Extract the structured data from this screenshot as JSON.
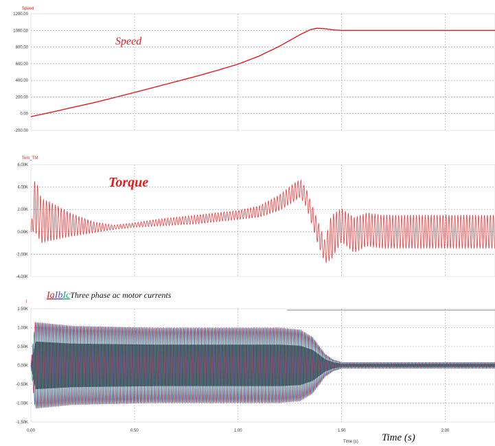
{
  "figure": {
    "time_label": "Time (s)",
    "time_caption": "Time (s)"
  },
  "chart_data": [
    {
      "type": "line",
      "title": "Speed",
      "annotation": "Speed",
      "xlabel": "Time (s)",
      "ylabel": "",
      "xlim": [
        0.0,
        2.24
      ],
      "ylim": [
        -200,
        1200
      ],
      "yticks": [
        "1200.00",
        "1000.00",
        "800.00",
        "600.00",
        "400.00",
        "200.00",
        "0.00",
        "-200.00"
      ],
      "ytick_values": [
        1200,
        1000,
        800,
        600,
        400,
        200,
        0,
        -200
      ],
      "grid": true,
      "series": [
        {
          "color": "#e8191c",
          "x": [
            0.0,
            0.1,
            0.2,
            0.3,
            0.4,
            0.5,
            0.6,
            0.7,
            0.8,
            0.9,
            1.0,
            1.1,
            1.2,
            1.25,
            1.3,
            1.35,
            1.38,
            1.42,
            1.46,
            1.5,
            1.6,
            1.8,
            2.0,
            2.24
          ],
          "y": [
            -35,
            18,
            75,
            130,
            192,
            255,
            320,
            385,
            450,
            520,
            595,
            690,
            810,
            880,
            950,
            1010,
            1025,
            1020,
            1005,
            1000,
            1000,
            1000,
            1000,
            1000
          ]
        }
      ]
    },
    {
      "type": "line",
      "title": "Tem_TM",
      "annotation": "Torque",
      "xlabel": "Time (s)",
      "ylabel": "",
      "xlim": [
        0.0,
        2.24
      ],
      "ylim": [
        -4000,
        6000
      ],
      "yticks": [
        "6.00K",
        "4.00K",
        "2.00K",
        "0.00K",
        "-2.00K",
        "-4.00K"
      ],
      "ytick_values": [
        6000,
        4000,
        2000,
        0,
        -2000,
        -4000
      ],
      "grid": true,
      "series": [
        {
          "color": "#e8191c",
          "x": [
            0.0,
            0.02,
            0.05,
            0.1,
            0.2,
            0.3,
            0.4,
            0.5,
            0.6,
            0.8,
            1.0,
            1.1,
            1.2,
            1.26,
            1.3,
            1.33,
            1.38,
            1.42,
            1.45,
            1.5,
            1.56,
            1.62,
            1.7,
            1.8,
            2.0,
            2.24
          ],
          "y": [
            0,
            2500,
            1000,
            900,
            600,
            400,
            400,
            600,
            800,
            1100,
            1500,
            1800,
            2600,
            3400,
            3900,
            3000,
            200,
            -1800,
            -500,
            600,
            -300,
            200,
            0,
            0,
            0,
            0
          ],
          "ripple": [
            0,
            2500,
            2000,
            1700,
            1000,
            500,
            200,
            200,
            300,
            400,
            400,
            500,
            700,
            800,
            800,
            800,
            1000,
            1000,
            2000,
            1500,
            1600,
            1500,
            1500,
            1500,
            1500,
            1500
          ]
        }
      ]
    },
    {
      "type": "line",
      "title": "I",
      "annotation": "Three phase ac motor currents",
      "phase_labels": [
        "Ia",
        "Ib",
        "Ic"
      ],
      "xlabel": "Time (s)",
      "ylabel": "",
      "xlim": [
        0.0,
        2.24
      ],
      "ylim": [
        -1500,
        1500
      ],
      "yticks": [
        "1.50K",
        "1.00K",
        "0.50K",
        "0.00K",
        "-0.50K",
        "-1.00K",
        "-1.50K"
      ],
      "ytick_values": [
        1500,
        1000,
        500,
        0,
        -500,
        -1000,
        -1500
      ],
      "xticks": [
        "0.00",
        "0.50",
        "1.00",
        "1.50",
        "2.00"
      ],
      "xtick_values": [
        0.0,
        0.5,
        1.0,
        1.5,
        2.0
      ],
      "grid": true,
      "envelope": {
        "t": [
          0.0,
          0.02,
          0.2,
          0.6,
          1.0,
          1.2,
          1.3,
          1.36,
          1.42,
          1.46,
          1.5,
          2.24
        ],
        "amp": [
          0,
          1150,
          1050,
          1000,
          1000,
          1000,
          950,
          750,
          300,
          150,
          80,
          80
        ]
      },
      "series": [
        {
          "name": "Ia",
          "color": "#e8191c"
        },
        {
          "name": "Ib",
          "color": "#4b4bd6"
        },
        {
          "name": "Ic",
          "color": "#1aa87a"
        }
      ]
    }
  ]
}
